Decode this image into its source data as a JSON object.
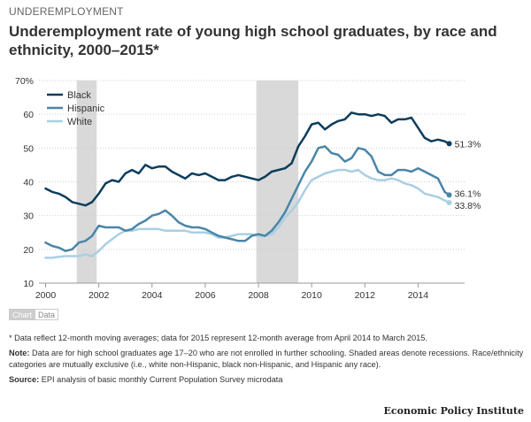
{
  "kicker": "UNDEREMPLOYMENT",
  "title": "Underemployment rate of young high school graduates, by race and ethnicity, 2000–2015*",
  "toggles": {
    "chart": "Chart",
    "data": "Data"
  },
  "notes": {
    "asterisk": "* Data reflect 12-month moving averages; data for 2015 represent 12-month average from April 2014 to March 2015.",
    "note_label": "Note:",
    "note_text": " Data are for high school graduates age 17–20 who are not enrolled in further schooling. Shaded areas denote recessions. Race/ethnicity categories are mutually exclusive (i.e., white non-Hispanic, black non-Hispanic, and Hispanic any race).",
    "source_label": "Source:",
    "source_text": " EPI analysis of basic monthly Current Population Survey microdata"
  },
  "brand": "Economic Policy Institute",
  "chart_data": {
    "type": "line",
    "xlim": [
      1999.75,
      2015.75
    ],
    "ylim": [
      10,
      70
    ],
    "x_ticks": [
      2000,
      2002,
      2004,
      2006,
      2008,
      2010,
      2012,
      2014
    ],
    "y_ticks": [
      10,
      20,
      30,
      40,
      50,
      60,
      70
    ],
    "y_tick_labels": [
      "10",
      "20",
      "30",
      "40",
      "50",
      "60",
      "70%"
    ],
    "grid": "horizontal",
    "legend": "top-left",
    "recessions": [
      [
        2001.17,
        2001.92
      ],
      [
        2007.92,
        2009.5
      ]
    ],
    "colors": {
      "recession": "#d9d9d9",
      "grid": "#d0d0d0",
      "axis": "#999999"
    },
    "series": [
      {
        "name": "Black",
        "color": "#0b3d5c",
        "end_label": "51.3%",
        "x": [
          2000.0,
          2000.25,
          2000.5,
          2000.75,
          2001.0,
          2001.25,
          2001.5,
          2001.75,
          2002.0,
          2002.25,
          2002.5,
          2002.75,
          2003.0,
          2003.25,
          2003.5,
          2003.75,
          2004.0,
          2004.25,
          2004.5,
          2004.75,
          2005.0,
          2005.25,
          2005.5,
          2005.75,
          2006.0,
          2006.25,
          2006.5,
          2006.75,
          2007.0,
          2007.25,
          2007.5,
          2007.75,
          2008.0,
          2008.25,
          2008.5,
          2008.75,
          2009.0,
          2009.25,
          2009.5,
          2009.75,
          2010.0,
          2010.25,
          2010.5,
          2010.75,
          2011.0,
          2011.25,
          2011.5,
          2011.75,
          2012.0,
          2012.25,
          2012.5,
          2012.75,
          2013.0,
          2013.25,
          2013.5,
          2013.75,
          2014.0,
          2014.25,
          2014.5,
          2014.75,
          2015.0,
          2015.17
        ],
        "y": [
          38.0,
          37.0,
          36.5,
          35.5,
          34.0,
          33.5,
          33.0,
          34.0,
          36.5,
          39.5,
          40.5,
          40.0,
          42.5,
          43.5,
          42.5,
          45.0,
          44.0,
          44.5,
          44.5,
          43.0,
          42.0,
          41.0,
          42.5,
          42.0,
          42.5,
          41.5,
          40.5,
          40.5,
          41.5,
          42.0,
          41.5,
          41.0,
          40.5,
          41.5,
          43.0,
          43.5,
          44.0,
          45.5,
          50.5,
          53.5,
          57.0,
          57.5,
          55.5,
          57.0,
          58.0,
          58.5,
          60.5,
          60.0,
          60.0,
          59.5,
          60.0,
          59.5,
          57.5,
          58.5,
          58.5,
          59.0,
          56.0,
          53.0,
          52.0,
          52.5,
          52.0,
          51.3
        ]
      },
      {
        "name": "Hispanic",
        "color": "#4a85a8",
        "end_label": "36.1%",
        "x": [
          2000.0,
          2000.25,
          2000.5,
          2000.75,
          2001.0,
          2001.25,
          2001.5,
          2001.75,
          2002.0,
          2002.25,
          2002.5,
          2002.75,
          2003.0,
          2003.25,
          2003.5,
          2003.75,
          2004.0,
          2004.25,
          2004.5,
          2004.75,
          2005.0,
          2005.25,
          2005.5,
          2005.75,
          2006.0,
          2006.25,
          2006.5,
          2006.75,
          2007.0,
          2007.25,
          2007.5,
          2007.75,
          2008.0,
          2008.25,
          2008.5,
          2008.75,
          2009.0,
          2009.25,
          2009.5,
          2009.75,
          2010.0,
          2010.25,
          2010.5,
          2010.75,
          2011.0,
          2011.25,
          2011.5,
          2011.75,
          2012.0,
          2012.25,
          2012.5,
          2012.75,
          2013.0,
          2013.25,
          2013.5,
          2013.75,
          2014.0,
          2014.25,
          2014.5,
          2014.75,
          2015.0,
          2015.17
        ],
        "y": [
          22.0,
          21.0,
          20.5,
          19.5,
          20.0,
          22.0,
          22.5,
          24.0,
          27.0,
          26.5,
          26.5,
          26.5,
          25.5,
          26.0,
          27.5,
          28.5,
          30.0,
          30.5,
          31.5,
          30.0,
          28.0,
          27.0,
          26.5,
          26.5,
          26.0,
          25.0,
          24.0,
          23.5,
          23.0,
          22.5,
          22.5,
          24.0,
          24.5,
          24.0,
          25.5,
          28.0,
          31.0,
          35.0,
          39.0,
          43.0,
          46.0,
          50.0,
          50.5,
          48.5,
          48.0,
          46.0,
          47.0,
          50.0,
          49.5,
          47.5,
          43.0,
          42.0,
          42.0,
          43.5,
          43.5,
          43.0,
          44.0,
          43.0,
          42.0,
          41.0,
          37.0,
          36.1
        ]
      },
      {
        "name": "White",
        "color": "#a9cfe3",
        "end_label": "33.8%",
        "x": [
          2000.0,
          2000.25,
          2000.5,
          2000.75,
          2001.0,
          2001.25,
          2001.5,
          2001.75,
          2002.0,
          2002.25,
          2002.5,
          2002.75,
          2003.0,
          2003.25,
          2003.5,
          2003.75,
          2004.0,
          2004.25,
          2004.5,
          2004.75,
          2005.0,
          2005.25,
          2005.5,
          2005.75,
          2006.0,
          2006.25,
          2006.5,
          2006.75,
          2007.0,
          2007.25,
          2007.5,
          2007.75,
          2008.0,
          2008.25,
          2008.5,
          2008.75,
          2009.0,
          2009.25,
          2009.5,
          2009.75,
          2010.0,
          2010.25,
          2010.5,
          2010.75,
          2011.0,
          2011.25,
          2011.5,
          2011.75,
          2012.0,
          2012.25,
          2012.5,
          2012.75,
          2013.0,
          2013.25,
          2013.5,
          2013.75,
          2014.0,
          2014.25,
          2014.5,
          2014.75,
          2015.0,
          2015.17
        ],
        "y": [
          17.5,
          17.5,
          17.8,
          18.0,
          18.0,
          18.0,
          18.5,
          18.0,
          19.5,
          21.5,
          23.0,
          24.5,
          25.5,
          25.5,
          26.0,
          26.0,
          26.0,
          26.0,
          25.5,
          25.5,
          25.5,
          25.5,
          25.0,
          25.0,
          25.0,
          24.5,
          23.5,
          23.5,
          24.0,
          24.5,
          24.5,
          24.5,
          24.0,
          24.0,
          24.5,
          26.5,
          29.5,
          31.5,
          34.0,
          37.5,
          40.5,
          41.5,
          42.5,
          43.0,
          43.5,
          43.5,
          43.0,
          43.5,
          42.0,
          41.0,
          40.5,
          40.5,
          41.0,
          40.5,
          39.5,
          39.0,
          38.0,
          36.5,
          36.0,
          35.5,
          34.5,
          33.8
        ]
      }
    ]
  }
}
